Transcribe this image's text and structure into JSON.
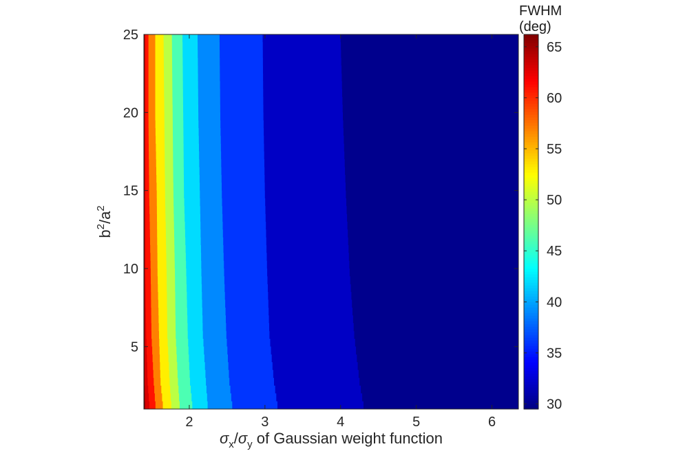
{
  "chart_data": {
    "type": "heatmap",
    "xlabel_parts": {
      "sx": "σ",
      "sub_x": "x",
      "slash": "/",
      "sy": "σ",
      "sub_y": "y",
      "rest": " of Gaussian weight function"
    },
    "ylabel_parts": {
      "b": "b",
      "sup2a": "2",
      "slash_a": "/a",
      "sup2b": "2"
    },
    "colorbar_label_line1": "FWHM",
    "colorbar_label_line2": "(deg)",
    "xlim": [
      1.4,
      6.35
    ],
    "ylim": [
      1,
      25
    ],
    "clim": [
      29.5,
      66.2
    ],
    "x_ticks": [
      2,
      3,
      4,
      5,
      6
    ],
    "y_ticks": [
      5,
      10,
      15,
      20,
      25
    ],
    "colorbar_ticks": [
      30,
      35,
      40,
      45,
      50,
      55,
      60,
      65
    ],
    "colormap": "jet",
    "y_samples": [
      1,
      3,
      6,
      10,
      15,
      20,
      25
    ],
    "contour_bands": [
      {
        "value": 66,
        "x_right": [
          1.42,
          1.41,
          1.41,
          1.41,
          1.41,
          1.41,
          1.41
        ]
      },
      {
        "value": 63,
        "x_right": [
          1.48,
          1.45,
          1.43,
          1.42,
          1.42,
          1.42,
          1.42
        ]
      },
      {
        "value": 61,
        "x_right": [
          1.56,
          1.53,
          1.5,
          1.49,
          1.47,
          1.46,
          1.46
        ]
      },
      {
        "value": 57,
        "x_right": [
          1.66,
          1.62,
          1.6,
          1.58,
          1.57,
          1.55,
          1.55
        ]
      },
      {
        "value": 53,
        "x_right": [
          1.77,
          1.74,
          1.71,
          1.7,
          1.68,
          1.67,
          1.66
        ]
      },
      {
        "value": 50,
        "x_right": [
          1.88,
          1.85,
          1.82,
          1.81,
          1.79,
          1.78,
          1.77
        ]
      },
      {
        "value": 46,
        "x_right": [
          2.05,
          2.01,
          1.98,
          1.96,
          1.93,
          1.92,
          1.91
        ]
      },
      {
        "value": 42,
        "x_right": [
          2.25,
          2.22,
          2.18,
          2.16,
          2.14,
          2.12,
          2.11
        ]
      },
      {
        "value": 39,
        "x_right": [
          2.58,
          2.53,
          2.49,
          2.46,
          2.43,
          2.41,
          2.4
        ]
      },
      {
        "value": 36,
        "x_right": [
          3.18,
          3.12,
          3.06,
          3.03,
          3.0,
          2.98,
          2.97
        ]
      },
      {
        "value": 32,
        "x_right": [
          4.32,
          4.25,
          4.18,
          4.12,
          4.07,
          4.03,
          4.0
        ]
      },
      {
        "value": 30,
        "x_right": [
          6.35,
          6.35,
          6.35,
          6.35,
          6.35,
          6.35,
          6.35
        ]
      }
    ]
  }
}
